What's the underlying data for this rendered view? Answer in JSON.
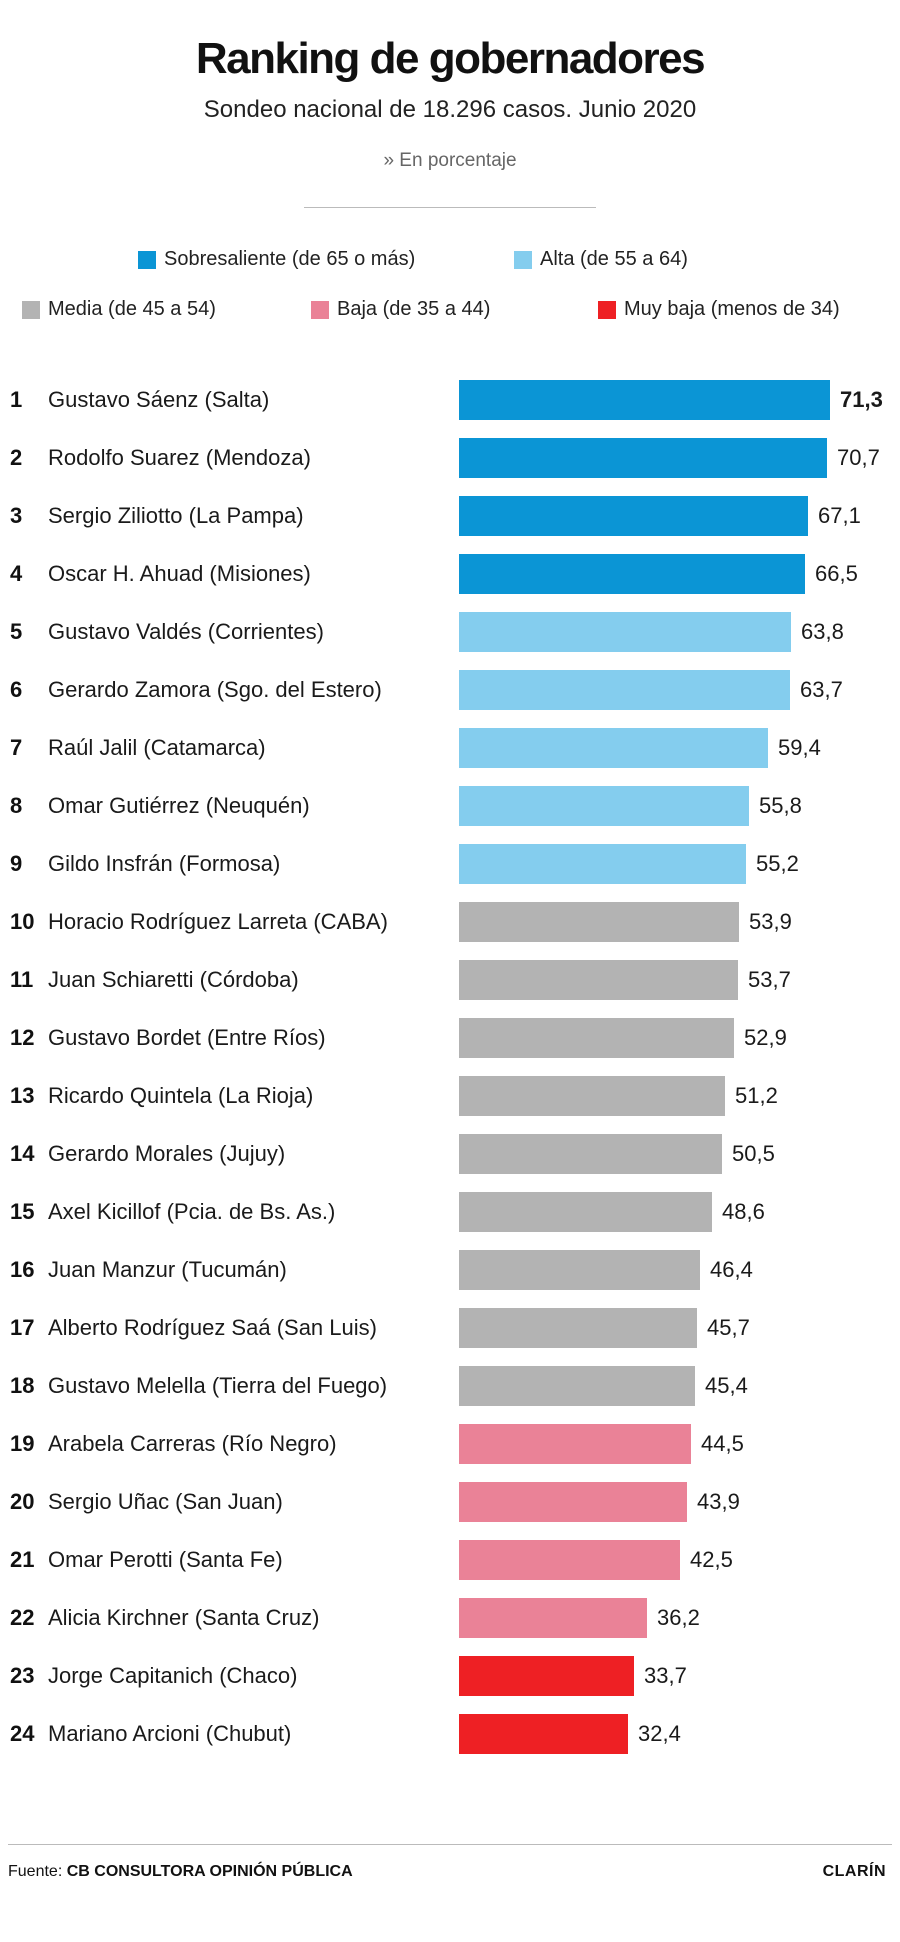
{
  "header": {
    "title": "Ranking de gobernadores",
    "subtitle": "Sondeo nacional de 18.296 casos. Junio 2020",
    "unit_note": "» En porcentaje"
  },
  "legend": [
    {
      "label": "Sobresaliente (de 65 o más)",
      "color": "#0b95d5"
    },
    {
      "label": "Alta (de 55 a 64)",
      "color": "#84cdee"
    },
    {
      "label": "Media (de 45 a 54)",
      "color": "#b3b3b3"
    },
    {
      "label": "Baja (de 35 a 44)",
      "color": "#ea8297"
    },
    {
      "label": "Muy baja (menos de 34)",
      "color": "#ee2024"
    }
  ],
  "chart_data": {
    "type": "bar",
    "title": "Ranking de gobernadores",
    "subtitle": "Sondeo nacional de 18.296 casos. Junio 2020",
    "unit": "» En porcentaje",
    "orientation": "horizontal",
    "categories": [
      "Gustavo Sáenz (Salta)",
      "Rodolfo Suarez (Mendoza)",
      "Sergio Ziliotto (La Pampa)",
      "Oscar H. Ahuad (Misiones)",
      "Gustavo Valdés (Corrientes)",
      "Gerardo Zamora (Sgo. del Estero)",
      "Raúl Jalil (Catamarca)",
      "Omar Gutiérrez (Neuquén)",
      "Gildo Insfrán (Formosa)",
      "Horacio Rodríguez Larreta (CABA)",
      "Juan Schiaretti (Córdoba)",
      "Gustavo Bordet (Entre Ríos)",
      "Ricardo Quintela (La Rioja)",
      "Gerardo Morales (Jujuy)",
      "Axel Kicillof (Pcia. de Bs. As.)",
      "Juan Manzur (Tucumán)",
      "Alberto Rodríguez Saá (San Luis)",
      "Gustavo Melella (Tierra del Fuego)",
      "Arabela Carreras (Río Negro)",
      "Sergio Uñac (San Juan)",
      "Omar Perotti (Santa Fe)",
      "Alicia Kirchner (Santa Cruz)",
      "Jorge Capitanich (Chaco)",
      "Mariano Arcioni (Chubut)"
    ],
    "ranks": [
      "1",
      "2",
      "3",
      "4",
      "5",
      "6",
      "7",
      "8",
      "9",
      "10",
      "11",
      "12",
      "13",
      "14",
      "15",
      "16",
      "17",
      "18",
      "19",
      "20",
      "21",
      "22",
      "23",
      "24"
    ],
    "values": [
      71.3,
      70.7,
      67.1,
      66.5,
      63.8,
      63.7,
      59.4,
      55.8,
      55.2,
      53.9,
      53.7,
      52.9,
      51.2,
      50.5,
      48.6,
      46.4,
      45.7,
      45.4,
      44.5,
      43.9,
      42.5,
      36.2,
      33.7,
      32.4
    ],
    "value_labels": [
      "71,3",
      "70,7",
      "67,1",
      "66,5",
      "63,8",
      "63,7",
      "59,4",
      "55,8",
      "55,2",
      "53,9",
      "53,7",
      "52,9",
      "51,2",
      "50,5",
      "48,6",
      "46,4",
      "45,7",
      "45,4",
      "44,5",
      "43,9",
      "42,5",
      "36,2",
      "33,7",
      "32,4"
    ],
    "category_index": [
      0,
      0,
      0,
      0,
      1,
      1,
      1,
      1,
      1,
      2,
      2,
      2,
      2,
      2,
      2,
      2,
      2,
      2,
      3,
      3,
      3,
      3,
      4,
      4
    ],
    "xlim": [
      0,
      71.3
    ],
    "grid": false,
    "legend_position": "top"
  },
  "footer": {
    "source_prefix": "Fuente:",
    "source_name": "CB CONSULTORA OPINIÓN PÚBLICA",
    "brand": "CLARÍN"
  }
}
